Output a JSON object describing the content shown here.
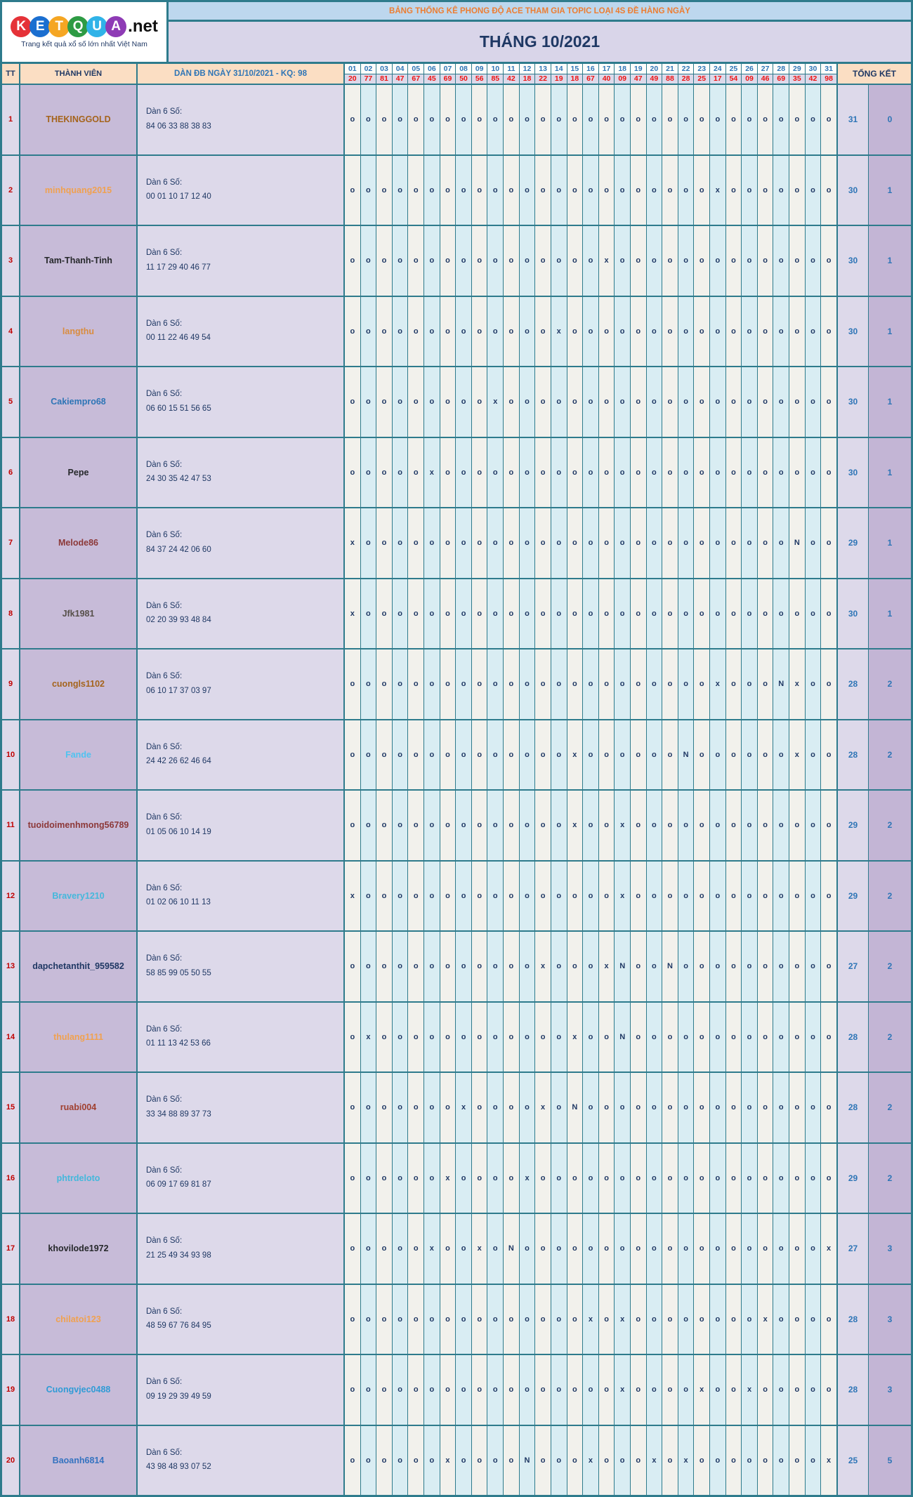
{
  "logo": {
    "letters": [
      {
        "ch": "K",
        "color": "#E53238"
      },
      {
        "ch": "E",
        "color": "#1B6FD0"
      },
      {
        "ch": "T",
        "color": "#F5A623"
      },
      {
        "ch": "Q",
        "color": "#2E9B44"
      },
      {
        "ch": "U",
        "color": "#30B3E8"
      },
      {
        "ch": "A",
        "color": "#8E3BB5"
      }
    ],
    "suffix": ".net",
    "tagline": "Trang kết quả xổ số lớn nhất Việt Nam"
  },
  "banner": {
    "topic_title": "BẢNG THỐNG KÊ PHONG ĐỘ ACE THAM GIA TOPIC LOẠI 4S ĐỀ HÀNG NGÀY",
    "month_title": "THÁNG 10/2021"
  },
  "header": {
    "tt": "TT",
    "member": "THÀNH VIÊN",
    "dan": "DÀN ĐB NGÀY 31/10/2021 - KQ: 98",
    "total": "TỔNG KẾT",
    "days": [
      "01",
      "02",
      "03",
      "04",
      "05",
      "06",
      "07",
      "08",
      "09",
      "10",
      "11",
      "12",
      "13",
      "14",
      "15",
      "16",
      "17",
      "18",
      "19",
      "20",
      "21",
      "22",
      "23",
      "24",
      "25",
      "26",
      "27",
      "28",
      "29",
      "30",
      "31"
    ],
    "day_values": [
      "20",
      "77",
      "81",
      "47",
      "67",
      "45",
      "69",
      "50",
      "56",
      "85",
      "42",
      "18",
      "22",
      "19",
      "18",
      "67",
      "40",
      "09",
      "47",
      "49",
      "88",
      "28",
      "25",
      "17",
      "54",
      "09",
      "46",
      "69",
      "35",
      "42",
      "98"
    ]
  },
  "labels": {
    "dan_label": "Dàn 6 Số:"
  },
  "symbols": {
    "hit": "o",
    "miss": "x",
    "none": "N"
  },
  "rows": [
    {
      "tt": "1",
      "name": "THEKINGGOLD",
      "color": "#A5641C",
      "dan": "84 06 33 88 38 83",
      "count": "31",
      "total": "0",
      "x": [],
      "n": []
    },
    {
      "tt": "2",
      "name": "minhquang2015",
      "color": "#F0A150",
      "dan": "00 01 10 17 12 40",
      "count": "30",
      "total": "1",
      "x": [
        24
      ],
      "n": []
    },
    {
      "tt": "3",
      "name": "Tam-Thanh-Tinh",
      "color": "#26282B",
      "dan": "11 17 29 40 46 77",
      "count": "30",
      "total": "1",
      "x": [
        17
      ],
      "n": []
    },
    {
      "tt": "4",
      "name": "langthu",
      "color": "#D98C3F",
      "dan": "00 11 22 46 49 54",
      "count": "30",
      "total": "1",
      "x": [
        14
      ],
      "n": []
    },
    {
      "tt": "5",
      "name": "Cakiempro68",
      "color": "#2E75B6",
      "dan": "06 60 15 51 56 65",
      "count": "30",
      "total": "1",
      "x": [
        10
      ],
      "n": []
    },
    {
      "tt": "6",
      "name": "Pepe",
      "color": "#26282B",
      "dan": "24 30 35 42 47 53",
      "count": "30",
      "total": "1",
      "x": [
        6
      ],
      "n": []
    },
    {
      "tt": "7",
      "name": "Melode86",
      "color": "#8C3838",
      "dan": "84 37 24 42 06 60",
      "count": "29",
      "total": "1",
      "x": [
        1
      ],
      "n": [
        29
      ]
    },
    {
      "tt": "8",
      "name": "Jfk1981",
      "color": "#57504A",
      "dan": "02 20 39 93 48 84",
      "count": "30",
      "total": "1",
      "x": [
        1
      ],
      "n": []
    },
    {
      "tt": "9",
      "name": "cuongls1102",
      "color": "#A5641C",
      "dan": "06 10 17 37 03 97",
      "count": "28",
      "total": "2",
      "x": [
        24,
        29
      ],
      "n": [
        28
      ]
    },
    {
      "tt": "10",
      "name": "Fande",
      "color": "#4FC3F0",
      "dan": "24 42 26 62 46 64",
      "count": "28",
      "total": "2",
      "x": [
        15,
        29
      ],
      "n": [
        22
      ]
    },
    {
      "tt": "11",
      "name": "tuoidoimenhmong56789",
      "color": "#8C3838",
      "dan": "01 05 06 10 14 19",
      "count": "29",
      "total": "2",
      "x": [
        15,
        18
      ],
      "n": []
    },
    {
      "tt": "12",
      "name": "Bravery1210",
      "color": "#44B8DC",
      "dan": "01 02 06 10 11 13",
      "count": "29",
      "total": "2",
      "x": [
        1,
        18
      ],
      "n": []
    },
    {
      "tt": "13",
      "name": "dapchetanthit_959582",
      "color": "#203864",
      "dan": "58 85 99 05 50 55",
      "count": "27",
      "total": "2",
      "x": [
        13,
        17
      ],
      "n": [
        18,
        21
      ]
    },
    {
      "tt": "14",
      "name": "thulang1111",
      "color": "#F0A150",
      "dan": "01 11 13 42 53 66",
      "count": "28",
      "total": "2",
      "x": [
        2,
        15
      ],
      "n": [
        18
      ]
    },
    {
      "tt": "15",
      "name": "ruabi004",
      "color": "#A04030",
      "dan": "33 34 88 89 37 73",
      "count": "28",
      "total": "2",
      "x": [
        8,
        13
      ],
      "n": [
        15
      ]
    },
    {
      "tt": "16",
      "name": "phtrdeloto",
      "color": "#44B8DC",
      "dan": "06 09 17 69 81 87",
      "count": "29",
      "total": "2",
      "x": [
        7,
        12
      ],
      "n": []
    },
    {
      "tt": "17",
      "name": "khovilode1972",
      "color": "#26282B",
      "dan": "21 25 49 34 93 98",
      "count": "27",
      "total": "3",
      "x": [
        6,
        9,
        31
      ],
      "n": [
        11
      ]
    },
    {
      "tt": "18",
      "name": "chilatoi123",
      "color": "#F0A150",
      "dan": "48 59 67 76 84 95",
      "count": "28",
      "total": "3",
      "x": [
        16,
        18,
        27
      ],
      "n": []
    },
    {
      "tt": "19",
      "name": "Cuongvjec0488",
      "color": "#2F9BD6",
      "dan": "09 19 29 39 49 59",
      "count": "28",
      "total": "3",
      "x": [
        18,
        23,
        26
      ],
      "n": []
    },
    {
      "tt": "20",
      "name": "Baoanh6814",
      "color": "#3573C0",
      "dan": "43 98 48 93 07 52",
      "count": "25",
      "total": "5",
      "x": [
        7,
        16,
        20,
        22,
        31
      ],
      "n": [
        12
      ]
    }
  ]
}
